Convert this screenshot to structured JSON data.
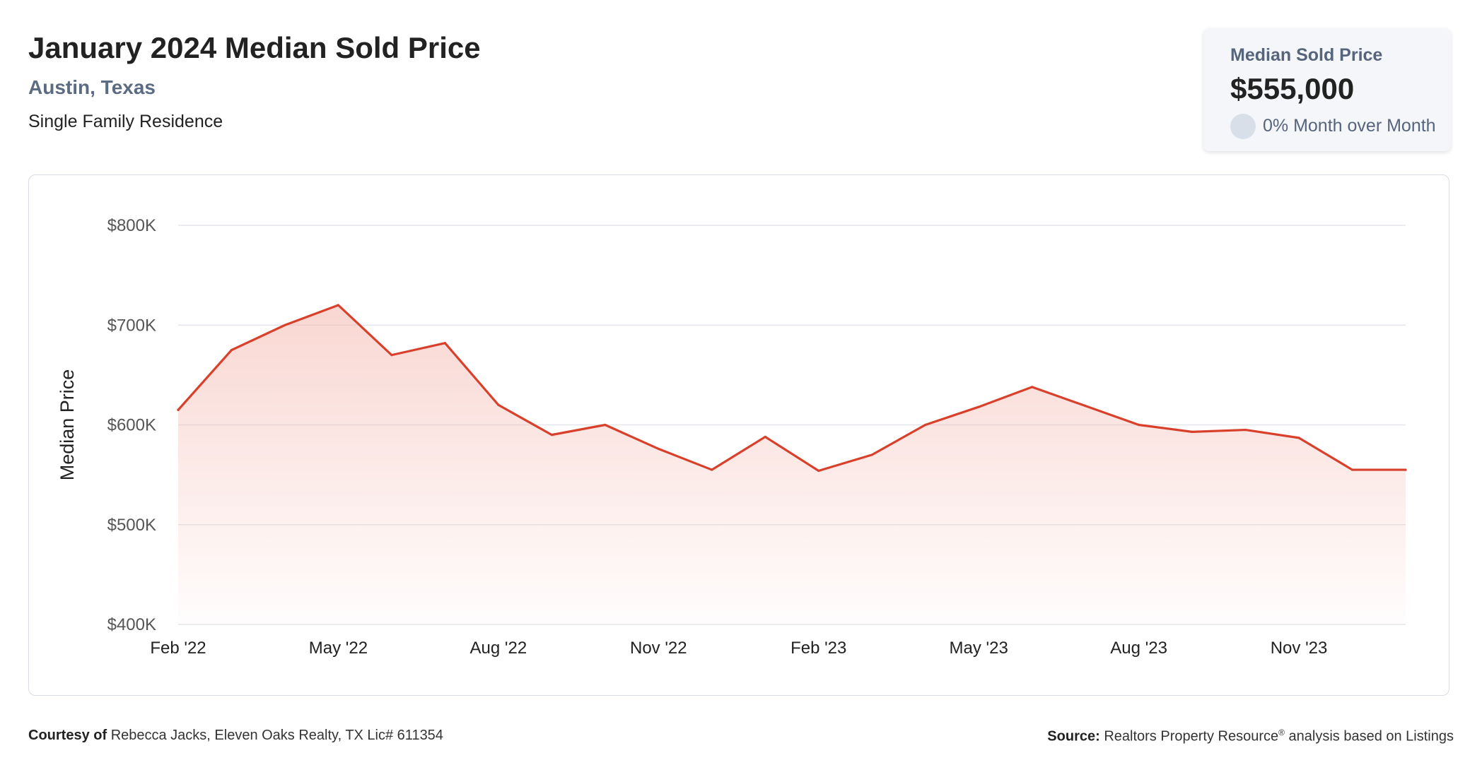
{
  "header": {
    "title": "January 2024 Median Sold Price",
    "location": "Austin, Texas",
    "property_type": "Single Family Residence"
  },
  "summary_card": {
    "label": "Median Sold Price",
    "value": "$555,000",
    "change": "0% Month over Month"
  },
  "colors": {
    "line": "#d9402b",
    "fill": "#f4b6ad",
    "grid": "#e3e6ea",
    "muted_text": "#56657b"
  },
  "chart_data": {
    "type": "area",
    "ylabel": "Median Price",
    "ylim": [
      400000,
      800000
    ],
    "y_ticks": [
      {
        "value": 800000,
        "label": "$800K"
      },
      {
        "value": 700000,
        "label": "$700K"
      },
      {
        "value": 600000,
        "label": "$600K"
      },
      {
        "value": 500000,
        "label": "$500K"
      },
      {
        "value": 400000,
        "label": "$400K"
      }
    ],
    "x": [
      "2022-02",
      "2022-03",
      "2022-04",
      "2022-05",
      "2022-06",
      "2022-07",
      "2022-08",
      "2022-09",
      "2022-10",
      "2022-11",
      "2022-12",
      "2023-01",
      "2023-02",
      "2023-03",
      "2023-04",
      "2023-05",
      "2023-06",
      "2023-07",
      "2023-08",
      "2023-09",
      "2023-10",
      "2023-11",
      "2023-12",
      "2024-01"
    ],
    "x_ticks": [
      {
        "x": "2022-02",
        "label": "Feb '22"
      },
      {
        "x": "2022-05",
        "label": "May '22"
      },
      {
        "x": "2022-08",
        "label": "Aug '22"
      },
      {
        "x": "2022-11",
        "label": "Nov '22"
      },
      {
        "x": "2023-02",
        "label": "Feb '23"
      },
      {
        "x": "2023-05",
        "label": "May '23"
      },
      {
        "x": "2023-08",
        "label": "Aug '23"
      },
      {
        "x": "2023-11",
        "label": "Nov '23"
      }
    ],
    "series": [
      {
        "values": [
          615000,
          675000,
          700000,
          720000,
          670000,
          682000,
          620000,
          590000,
          600000,
          576000,
          555000,
          588000,
          554000,
          570000,
          600000,
          618000,
          638000,
          619000,
          600000,
          593000,
          595000,
          587000,
          555000,
          555000
        ]
      }
    ],
    "grid": true,
    "legend": "none"
  },
  "footer": {
    "courtesy_label": "Courtesy of",
    "courtesy_text": "Rebecca Jacks, Eleven Oaks Realty, TX Lic# 611354",
    "source_label": "Source:",
    "source_text_1": "Realtors Property Resource",
    "source_reg": "®",
    "source_text_2": "analysis based on Listings"
  }
}
